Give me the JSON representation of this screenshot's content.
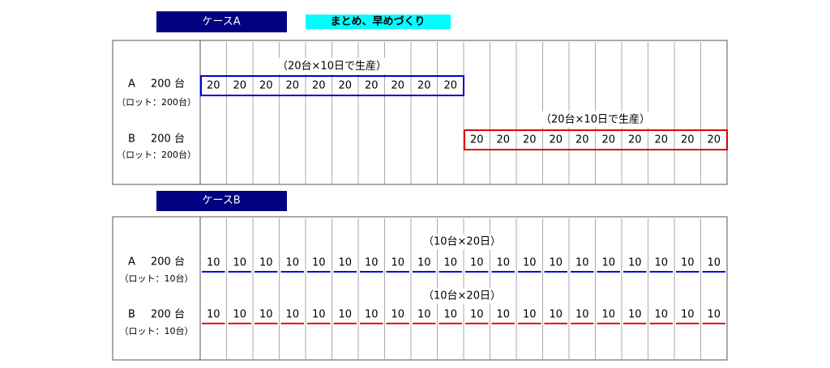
{
  "case_a": {
    "label": "ケースA",
    "tag": "まとめ、早めづくり",
    "rows": [
      {
        "name": "A",
        "qty": "200 台",
        "lot": "（ロット：200台）",
        "note": "（20台×10日で生産）",
        "cells": [
          20,
          20,
          20,
          20,
          20,
          20,
          20,
          20,
          20,
          20
        ]
      },
      {
        "name": "B",
        "qty": "200 台",
        "lot": "（ロット：200台）",
        "note": "（20台×10日で生産）",
        "cells": [
          20,
          20,
          20,
          20,
          20,
          20,
          20,
          20,
          20,
          20
        ]
      }
    ]
  },
  "case_b": {
    "label": "ケースB",
    "rows": [
      {
        "name": "A",
        "qty": "200 台",
        "lot": "（ロット：10台）",
        "note": "（10台×20日）",
        "cells": [
          10,
          10,
          10,
          10,
          10,
          10,
          10,
          10,
          10,
          10,
          10,
          10,
          10,
          10,
          10,
          10,
          10,
          10,
          10,
          10
        ]
      },
      {
        "name": "B",
        "qty": "200 台",
        "lot": "（ロット：10台）",
        "note": "（10台×20日）",
        "cells": [
          10,
          10,
          10,
          10,
          10,
          10,
          10,
          10,
          10,
          10,
          10,
          10,
          10,
          10,
          10,
          10,
          10,
          10,
          10,
          10
        ]
      }
    ]
  }
}
